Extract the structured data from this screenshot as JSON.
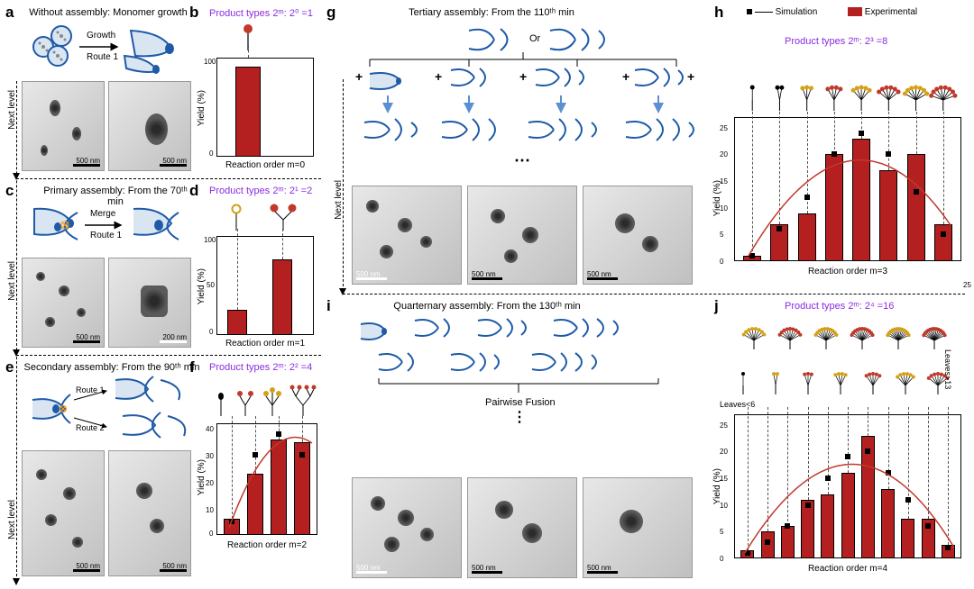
{
  "colors": {
    "bar": "#b41f1f",
    "curve": "#c0392b",
    "sim": "#000000",
    "product_type_text": "#8a2be2",
    "background": "#ffffff",
    "axis": "#000000",
    "schematic_blue": "#1e5aa8",
    "schematic_light": "#d9e6f2",
    "leaf_red": "#c0392b",
    "leaf_yellow": "#d4a017"
  },
  "fontsize": {
    "panel_label": 17,
    "title": 11,
    "axis_label": 10,
    "tick": 8,
    "product_type": 11
  },
  "labels": {
    "a": "a",
    "b": "b",
    "c": "c",
    "d": "d",
    "e": "e",
    "f": "f",
    "g": "g",
    "h": "h",
    "i": "i",
    "j": "j",
    "next_level": "Next level",
    "growth": "Growth",
    "route1": "Route 1",
    "route2": "Route 2",
    "merge": "Merge",
    "or": "Or",
    "pairwise": "Pairwise Fusion",
    "leaves_lt6": "Leaves<6",
    "leaves_gt13": "Leaves>13",
    "yield": "Yield (%)"
  },
  "titles": {
    "a": "Without assembly: Monomer growth",
    "c": "Primary assembly: From the 70ᵗʰ min",
    "e": "Secondary assembly: From the 90ᵗʰ min",
    "g": "Tertiary assembly: From the 110ᵗʰ min",
    "i": "Quarternary assembly: From the 130ᵗʰ min"
  },
  "product_types": {
    "b": "Product types 2ᵐ: 2⁰ =1",
    "d": "Product types 2ᵐ: 2¹ =2",
    "f": "Product types 2ᵐ: 2² =4",
    "h": "Product types 2ᵐ: 2³ =8",
    "j": "Product types 2ᵐ: 2⁴ =16"
  },
  "legend": {
    "sim": "Simulation",
    "exp": "Experimental"
  },
  "charts": {
    "b": {
      "type": "bar",
      "n_bars": 1,
      "values": [
        100
      ],
      "ylim": [
        0,
        110
      ],
      "yticks": [
        0,
        100
      ],
      "xlabel": "Reaction order m=0"
    },
    "d": {
      "type": "bar",
      "n_bars": 2,
      "values": [
        25,
        76
      ],
      "ylim": [
        0,
        110
      ],
      "yticks": [
        0,
        50,
        100
      ],
      "xlabel": "Reaction order m=1"
    },
    "f": {
      "type": "bar+sim",
      "n_bars": 4,
      "values": [
        6,
        23,
        36,
        35
      ],
      "sim": [
        5,
        30,
        38,
        30
      ],
      "ylim": [
        0,
        42
      ],
      "yticks": [
        0,
        10,
        20,
        30,
        40
      ],
      "xlabel": "Reaction order m=2"
    },
    "h": {
      "type": "bar+sim",
      "n_bars": 8,
      "values": [
        1,
        7,
        9,
        20,
        23,
        17,
        20,
        7
      ],
      "sim": [
        1,
        6,
        12,
        20,
        24,
        20,
        13,
        5
      ],
      "ylim": [
        0,
        27
      ],
      "yticks": [
        0,
        5,
        10,
        15,
        20,
        25
      ],
      "xlabel": "Reaction order m=3"
    },
    "j": {
      "type": "bar+sim",
      "n_bars": 11,
      "values": [
        1.5,
        5,
        6,
        11,
        12,
        16,
        23,
        13,
        7.5,
        7.5,
        2.5
      ],
      "sim": [
        1,
        3,
        6,
        10,
        15,
        19,
        20,
        16,
        11,
        6,
        2
      ],
      "ylim": [
        0,
        27
      ],
      "yticks": [
        0,
        5,
        10,
        15,
        20,
        25
      ],
      "xlabel": "Reaction order m=4",
      "extra_right_tick": "25"
    }
  },
  "scale_bars": {
    "default_nm": "500 nm",
    "alt_nm": "200 nm"
  },
  "tree_glyphs": {
    "b": [
      {
        "leaves": 1,
        "color": "#c0392b"
      }
    ],
    "d": [
      {
        "leaves": 1,
        "color": "#d4a017"
      },
      {
        "leaves": 2,
        "color": "#c0392b"
      }
    ],
    "f": [
      {
        "leaves": 1,
        "color": "#000"
      },
      {
        "leaves": 2,
        "color": "#c0392b"
      },
      {
        "leaves": 3,
        "color": "#d4a017"
      },
      {
        "leaves": 4,
        "color": "#c0392b"
      }
    ],
    "h": [
      {
        "leaves": 1,
        "color": "#000"
      },
      {
        "leaves": 2,
        "color": "#000"
      },
      {
        "leaves": 3,
        "color": "#d4a017"
      },
      {
        "leaves": 4,
        "color": "#c0392b"
      },
      {
        "leaves": 5,
        "color": "#d4a017"
      },
      {
        "leaves": 6,
        "color": "#c0392b"
      },
      {
        "leaves": 7,
        "color": "#d4a017"
      },
      {
        "leaves": 8,
        "color": "#c0392b"
      }
    ],
    "j_row1": [
      {
        "leaves": 8,
        "color": "#d4a017"
      },
      {
        "leaves": 9,
        "color": "#c0392b"
      },
      {
        "leaves": 10,
        "color": "#d4a017"
      },
      {
        "leaves": 11,
        "color": "#c0392b"
      },
      {
        "leaves": 12,
        "color": "#d4a017"
      },
      {
        "leaves": 13,
        "color": "#c0392b"
      }
    ],
    "j_row2": [
      {
        "leaves": 1,
        "color": "#000"
      },
      {
        "leaves": 2,
        "color": "#d4a017"
      },
      {
        "leaves": 3,
        "color": "#c0392b"
      },
      {
        "leaves": 4,
        "color": "#d4a017"
      },
      {
        "leaves": 5,
        "color": "#c0392b"
      },
      {
        "leaves": 6,
        "color": "#d4a017"
      },
      {
        "leaves": 7,
        "color": "#c0392b"
      }
    ]
  }
}
